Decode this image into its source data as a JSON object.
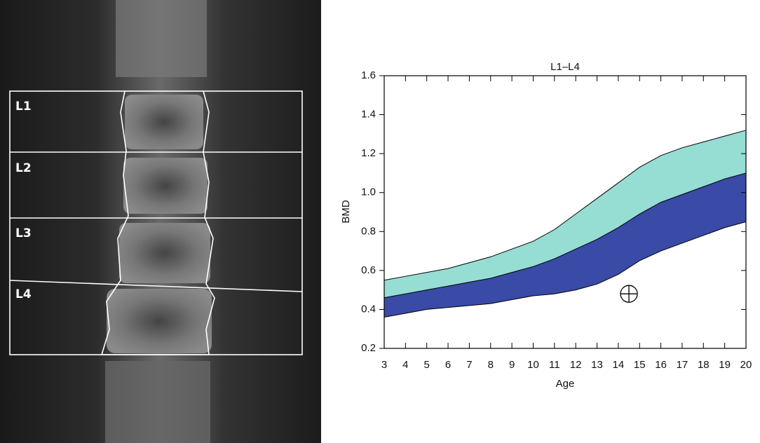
{
  "image": {
    "labels": [
      "L1",
      "L2",
      "L3",
      "L4"
    ]
  },
  "chart_data": {
    "type": "band",
    "title": "L1–L4",
    "x_label": "Age",
    "y_label": "BMD",
    "x": [
      3,
      4,
      5,
      6,
      7,
      8,
      9,
      10,
      11,
      12,
      13,
      14,
      15,
      16,
      17,
      18,
      19,
      20
    ],
    "series": [
      {
        "color": "#394aa7",
        "values": [
          0.36,
          0.38,
          0.4,
          0.41,
          0.42,
          0.43,
          0.45,
          0.47,
          0.48,
          0.5,
          0.53,
          0.58,
          0.65,
          0.7,
          0.74,
          0.78,
          0.82,
          0.85
        ]
      },
      {
        "color": "#96ddd4",
        "values": [
          0.46,
          0.48,
          0.5,
          0.52,
          0.54,
          0.56,
          0.59,
          0.62,
          0.66,
          0.71,
          0.76,
          0.82,
          0.89,
          0.95,
          0.99,
          1.03,
          1.07,
          1.1
        ]
      },
      {
        "values": [
          0.55,
          0.57,
          0.59,
          0.61,
          0.64,
          0.67,
          0.71,
          0.75,
          0.81,
          0.89,
          0.97,
          1.05,
          1.13,
          1.19,
          1.23,
          1.26,
          1.29,
          1.32
        ]
      }
    ],
    "point": {
      "x": 14.5,
      "y": 0.48
    },
    "xlim": [
      3,
      20
    ],
    "xticks": [
      3,
      4,
      5,
      6,
      7,
      8,
      9,
      10,
      11,
      12,
      13,
      14,
      15,
      16,
      17,
      18,
      19,
      20
    ],
    "ylim": [
      0.2,
      1.6
    ],
    "yticks": [
      0.2,
      0.4,
      0.6,
      0.8,
      {
        "value": 1,
        "label": "1.0"
      },
      1.2,
      1.4,
      1.6
    ]
  }
}
